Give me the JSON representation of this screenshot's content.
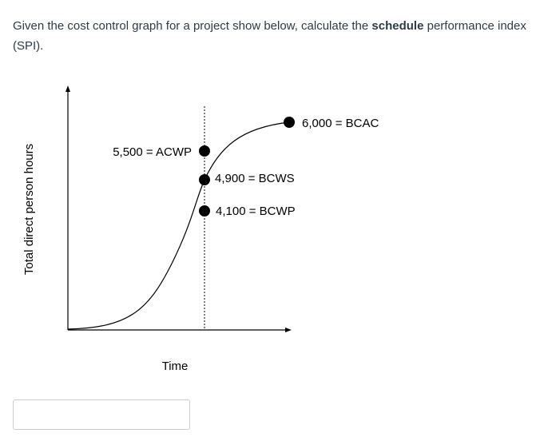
{
  "question": {
    "before": "Given the cost control graph for a project show below, calculate the ",
    "bold": "schedule",
    "after": " performance index (SPI)."
  },
  "figure": {
    "y_axis_label": "Total direct person hours",
    "x_axis_label": "Time",
    "labels": {
      "bcac": "6,000 = BCAC",
      "acwp": "5,500 = ACWP",
      "bcws": "4,900 = BCWS",
      "bcwp": "4,100 = BCWP"
    }
  },
  "answer": {
    "value": "",
    "placeholder": ""
  }
}
